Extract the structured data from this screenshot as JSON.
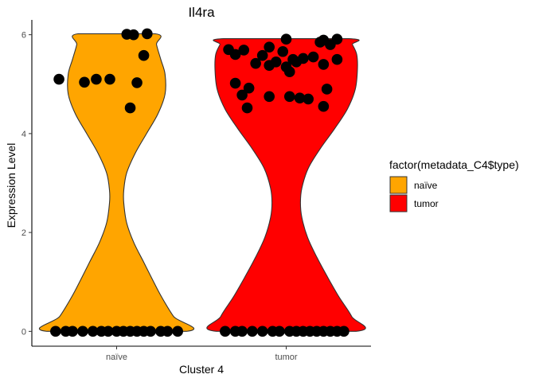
{
  "chart_data": {
    "type": "violin",
    "title": "Il4ra",
    "xlabel": "Cluster 4",
    "ylabel": "Expression Level",
    "categories": [
      "naïve",
      "tumor"
    ],
    "ylim": [
      -0.3,
      6.3
    ],
    "yticks": [
      0,
      2,
      4,
      6
    ],
    "grid": false,
    "legend": {
      "title": "factor(metadata_C4$type)",
      "placement": "right",
      "entries": [
        {
          "label": "naïve",
          "color": "#FFA500"
        },
        {
          "label": "tumor",
          "color": "#FF0000"
        }
      ]
    },
    "violins": [
      {
        "category": "naïve",
        "color": "#FFA500",
        "profile": [
          [
            0,
            0.98
          ],
          [
            0.3,
            0.8
          ],
          [
            0.7,
            0.63
          ],
          [
            1.0,
            0.52
          ],
          [
            1.4,
            0.38
          ],
          [
            1.8,
            0.24
          ],
          [
            2.2,
            0.14
          ],
          [
            2.6,
            0.1
          ],
          [
            2.85,
            0.1
          ],
          [
            3.2,
            0.14
          ],
          [
            3.6,
            0.26
          ],
          [
            4.0,
            0.42
          ],
          [
            4.4,
            0.58
          ],
          [
            4.8,
            0.68
          ],
          [
            5.2,
            0.68
          ],
          [
            5.5,
            0.62
          ],
          [
            5.8,
            0.56
          ],
          [
            6.02,
            0.54
          ]
        ]
      },
      {
        "category": "tumor",
        "color": "#FF0000",
        "profile": [
          [
            0,
            0.98
          ],
          [
            0.3,
            0.92
          ],
          [
            0.7,
            0.74
          ],
          [
            1.1,
            0.58
          ],
          [
            1.5,
            0.43
          ],
          [
            1.9,
            0.3
          ],
          [
            2.3,
            0.22
          ],
          [
            2.6,
            0.2
          ],
          [
            2.9,
            0.22
          ],
          [
            3.3,
            0.31
          ],
          [
            3.7,
            0.48
          ],
          [
            4.1,
            0.68
          ],
          [
            4.5,
            0.86
          ],
          [
            4.9,
            0.97
          ],
          [
            5.3,
            1.0
          ],
          [
            5.6,
            0.99
          ],
          [
            5.8,
            0.93
          ],
          [
            5.92,
            0.88
          ]
        ]
      }
    ],
    "points": [
      {
        "category": "naïve",
        "values": [
          6.01,
          6.0,
          6.02,
          5.58,
          5.1,
          5.04,
          5.1,
          5.1,
          5.03,
          4.52,
          0,
          0,
          0,
          0,
          0,
          0,
          0,
          0,
          0,
          0,
          0,
          0,
          0,
          0,
          0,
          0
        ],
        "offsets": [
          0.06,
          0.1,
          0.18,
          0.16,
          -0.34,
          -0.19,
          -0.12,
          -0.04,
          0.12,
          0.08,
          -0.36,
          -0.3,
          -0.26,
          -0.2,
          -0.14,
          -0.09,
          -0.05,
          0.0,
          0.04,
          0.08,
          0.12,
          0.16,
          0.2,
          0.26,
          0.3,
          0.36
        ]
      },
      {
        "category": "tumor",
        "values": [
          5.91,
          5.89,
          5.91,
          5.85,
          5.8,
          5.75,
          5.7,
          5.69,
          5.66,
          5.6,
          5.58,
          5.55,
          5.52,
          5.5,
          5.5,
          5.45,
          5.45,
          5.42,
          5.4,
          5.38,
          5.35,
          5.25,
          5.02,
          4.92,
          4.9,
          4.78,
          4.75,
          4.75,
          4.72,
          4.7,
          4.55,
          4.52,
          0,
          0,
          0,
          0,
          0,
          0,
          0,
          0,
          0,
          0,
          0,
          0,
          0,
          0,
          0,
          0
        ],
        "offsets": [
          0.0,
          0.22,
          0.3,
          0.2,
          0.26,
          -0.1,
          -0.34,
          -0.25,
          -0.02,
          -0.3,
          -0.14,
          0.16,
          0.1,
          0.04,
          0.3,
          -0.06,
          0.06,
          -0.18,
          0.22,
          -0.1,
          0.0,
          0.02,
          -0.3,
          -0.22,
          0.24,
          -0.26,
          -0.1,
          0.02,
          0.08,
          0.13,
          0.22,
          -0.23,
          -0.36,
          -0.3,
          -0.26,
          -0.2,
          -0.14,
          -0.08,
          0.02,
          0.06,
          0.1,
          0.14,
          0.18,
          0.22,
          0.26,
          0.3,
          0.34,
          -0.04
        ]
      }
    ]
  }
}
